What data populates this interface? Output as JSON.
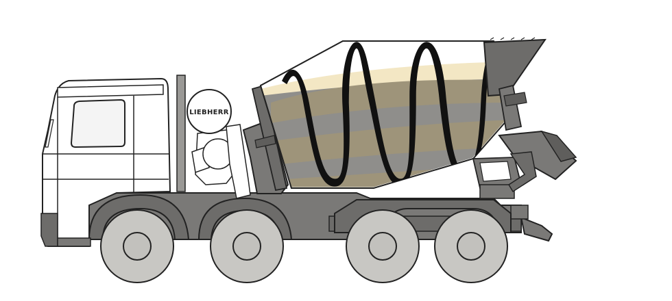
{
  "brand": {
    "logo_text": "LIEBHERR"
  },
  "colors": {
    "chassis": "#7a7977",
    "chassis_dark": "#5f5e5c",
    "tire": "#c8c7c3",
    "tire_hub": "#c2c1bd",
    "drum_gray": "#8f8e8b",
    "concrete_tan": "#9e947a",
    "concrete_light": "#f3e7c4",
    "cab_white": "#ffffff",
    "window_fill": "#f4f4f4",
    "outline": "#222222"
  },
  "icons": [
    "cab",
    "mixer-drum",
    "spiral-blade",
    "wheel",
    "chute",
    "logo-badge"
  ]
}
